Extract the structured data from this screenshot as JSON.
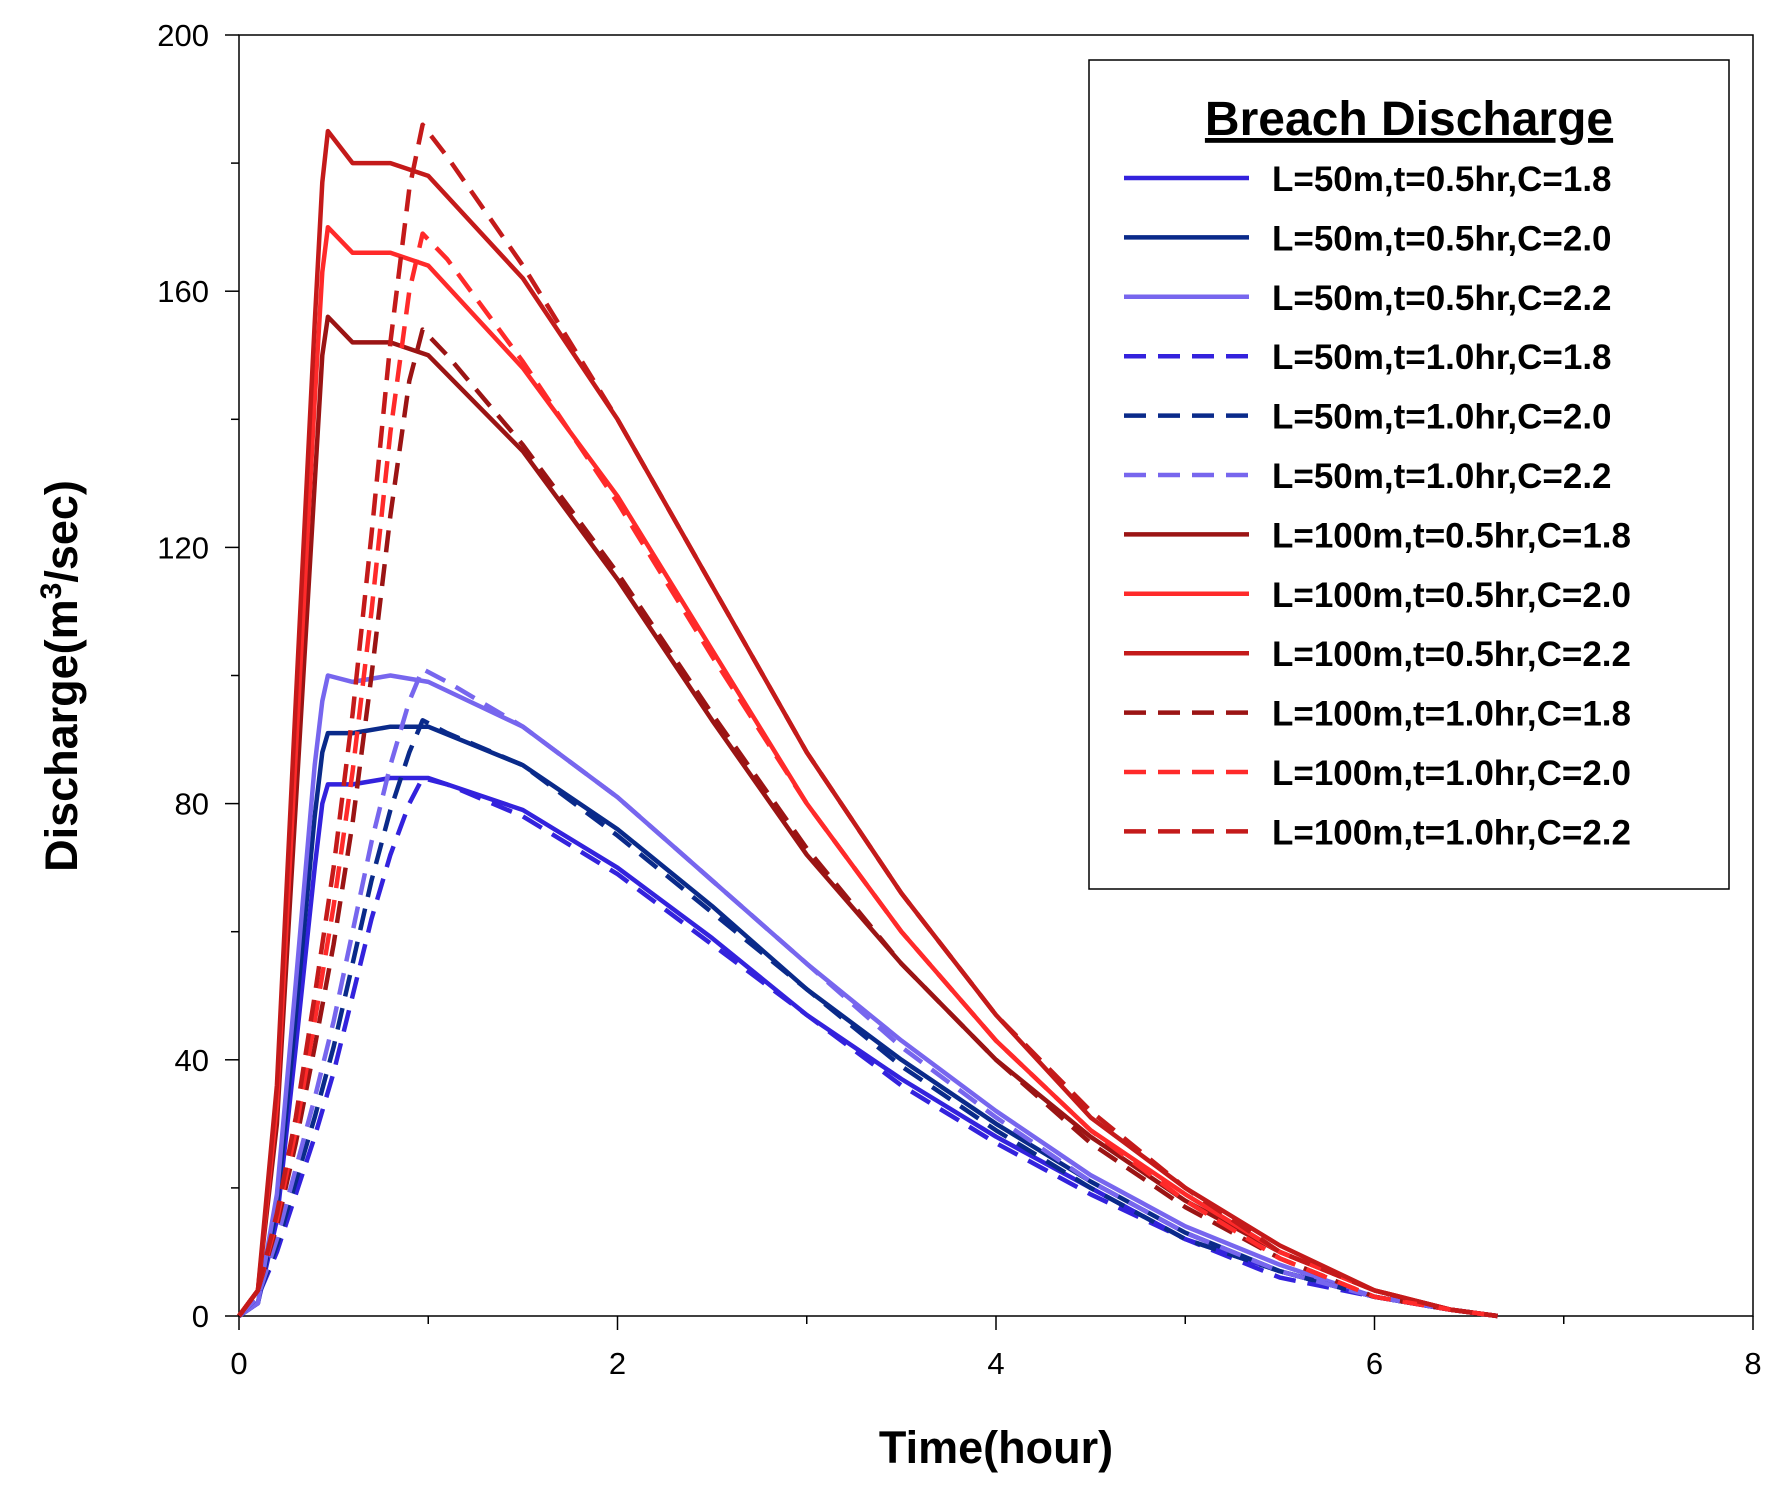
{
  "chart_data": {
    "type": "line",
    "title": "",
    "xlabel": "Time(hour)",
    "ylabel": "Discharge(m3/sec)",
    "ylabel_parts": {
      "pre": "Discharge(m",
      "sup": "3",
      "post": "/sec)"
    },
    "xlim": [
      0,
      8
    ],
    "ylim": [
      0,
      200
    ],
    "xticks": [
      0,
      2,
      4,
      6,
      8
    ],
    "xtick_labels": [
      "0",
      "2",
      "4",
      "6",
      "8"
    ],
    "yticks": [
      0,
      40,
      80,
      120,
      160,
      200
    ],
    "ytick_labels": [
      "0",
      "40",
      "80",
      "120",
      "160",
      "200"
    ],
    "grid": false,
    "legend": {
      "title": "Breach Discharge",
      "position": "top-right"
    },
    "series": [
      {
        "name": "L=50m,t=0.5hr,C=1.8",
        "color": "#3322dd",
        "dash": false,
        "x": [
          0,
          0.1,
          0.2,
          0.3,
          0.4,
          0.44,
          0.47,
          0.6,
          0.8,
          1.0,
          1.5,
          2.0,
          2.5,
          3.0,
          3.5,
          4.0,
          4.5,
          5.0,
          5.5,
          6.0,
          6.4,
          6.65
        ],
        "y": [
          0,
          2,
          15,
          42,
          70,
          80,
          83,
          83,
          84,
          84,
          79,
          70,
          59,
          47,
          37,
          28,
          20,
          12,
          7,
          3,
          1,
          0
        ]
      },
      {
        "name": "L=50m,t=0.5hr,C=2.0",
        "color": "#0a2a8a",
        "dash": false,
        "x": [
          0,
          0.1,
          0.2,
          0.3,
          0.4,
          0.44,
          0.47,
          0.6,
          0.8,
          1.0,
          1.5,
          2.0,
          2.5,
          3.0,
          3.5,
          4.0,
          4.5,
          5.0,
          5.5,
          6.0,
          6.4,
          6.65
        ],
        "y": [
          0,
          2,
          17,
          47,
          78,
          88,
          91,
          91,
          92,
          92,
          86,
          76,
          64,
          51,
          40,
          30,
          21,
          13,
          7,
          3,
          1,
          0
        ]
      },
      {
        "name": "L=50m,t=0.5hr,C=2.2",
        "color": "#7766ee",
        "dash": false,
        "x": [
          0,
          0.1,
          0.2,
          0.3,
          0.4,
          0.44,
          0.47,
          0.6,
          0.8,
          1.0,
          1.5,
          2.0,
          2.5,
          3.0,
          3.5,
          4.0,
          4.5,
          5.0,
          5.5,
          6.0,
          6.4,
          6.65
        ],
        "y": [
          0,
          2,
          19,
          52,
          86,
          96,
          100,
          99,
          100,
          99,
          92,
          81,
          68,
          55,
          43,
          32,
          22,
          14,
          8,
          3,
          1,
          0
        ]
      },
      {
        "name": "L=50m,t=1.0hr,C=1.8",
        "color": "#3322dd",
        "dash": true,
        "x": [
          0,
          0.1,
          0.2,
          0.3,
          0.4,
          0.5,
          0.6,
          0.7,
          0.8,
          0.9,
          0.97,
          1.1,
          1.5,
          2.0,
          2.5,
          3.0,
          3.5,
          4.0,
          4.5,
          5.0,
          5.5,
          6.0,
          6.4,
          6.65
        ],
        "y": [
          0,
          3,
          10,
          19,
          28,
          38,
          50,
          62,
          72,
          80,
          84,
          83,
          78,
          69,
          58,
          47,
          36,
          27,
          19,
          12,
          6,
          3,
          1,
          0
        ]
      },
      {
        "name": "L=50m,t=1.0hr,C=2.0",
        "color": "#0a2a8a",
        "dash": true,
        "x": [
          0,
          0.1,
          0.2,
          0.3,
          0.4,
          0.5,
          0.6,
          0.7,
          0.8,
          0.9,
          0.97,
          1.1,
          1.5,
          2.0,
          2.5,
          3.0,
          3.5,
          4.0,
          4.5,
          5.0,
          5.5,
          6.0,
          6.4,
          6.65
        ],
        "y": [
          0,
          3,
          11,
          21,
          31,
          42,
          55,
          68,
          79,
          88,
          93,
          91,
          86,
          75,
          63,
          51,
          39,
          29,
          20,
          12,
          7,
          3,
          1,
          0
        ]
      },
      {
        "name": "L=50m,t=1.0hr,C=2.2",
        "color": "#7766ee",
        "dash": true,
        "x": [
          0,
          0.1,
          0.2,
          0.3,
          0.4,
          0.5,
          0.6,
          0.7,
          0.8,
          0.9,
          0.97,
          1.1,
          1.5,
          2.0,
          2.5,
          3.0,
          3.5,
          4.0,
          4.5,
          5.0,
          5.5,
          6.0,
          6.4,
          6.65
        ],
        "y": [
          0,
          3,
          12,
          23,
          34,
          46,
          60,
          74,
          86,
          96,
          101,
          99,
          92,
          81,
          68,
          55,
          42,
          31,
          21,
          13,
          7,
          3,
          1,
          0
        ]
      },
      {
        "name": "L=100m,t=0.5hr,C=1.8",
        "color": "#9b1414",
        "dash": false,
        "x": [
          0,
          0.1,
          0.2,
          0.3,
          0.4,
          0.44,
          0.47,
          0.6,
          0.8,
          1.0,
          1.5,
          2.0,
          2.5,
          3.0,
          3.5,
          4.0,
          4.5,
          5.0,
          5.5,
          6.0,
          6.4,
          6.65
        ],
        "y": [
          0,
          4,
          30,
          80,
          130,
          150,
          156,
          152,
          152,
          150,
          135,
          115,
          93,
          72,
          55,
          40,
          28,
          18,
          10,
          4,
          1,
          0
        ]
      },
      {
        "name": "L=100m,t=0.5hr,C=2.0",
        "color": "#ff2a2a",
        "dash": false,
        "x": [
          0,
          0.1,
          0.2,
          0.3,
          0.4,
          0.44,
          0.47,
          0.6,
          0.8,
          1.0,
          1.5,
          2.0,
          2.5,
          3.0,
          3.5,
          4.0,
          4.5,
          5.0,
          5.5,
          6.0,
          6.4,
          6.65
        ],
        "y": [
          0,
          4,
          33,
          88,
          143,
          163,
          170,
          166,
          166,
          164,
          148,
          128,
          104,
          80,
          60,
          43,
          29,
          19,
          10,
          4,
          1,
          0
        ]
      },
      {
        "name": "L=100m,t=0.5hr,C=2.2",
        "color": "#c41a1a",
        "dash": false,
        "x": [
          0,
          0.1,
          0.2,
          0.3,
          0.4,
          0.44,
          0.47,
          0.6,
          0.8,
          1.0,
          1.5,
          2.0,
          2.5,
          3.0,
          3.5,
          4.0,
          4.5,
          5.0,
          5.5,
          6.0,
          6.4,
          6.65
        ],
        "y": [
          0,
          4,
          36,
          96,
          155,
          177,
          185,
          180,
          180,
          178,
          162,
          140,
          114,
          88,
          66,
          47,
          31,
          20,
          11,
          4,
          1,
          0
        ]
      },
      {
        "name": "L=100m,t=1.0hr,C=1.8",
        "color": "#9b1414",
        "dash": true,
        "x": [
          0,
          0.1,
          0.2,
          0.3,
          0.4,
          0.5,
          0.6,
          0.7,
          0.8,
          0.9,
          0.97,
          1.1,
          1.5,
          2.0,
          2.5,
          3.0,
          3.5,
          4.0,
          4.5,
          5.0,
          5.5,
          6.0,
          6.4,
          6.65
        ],
        "y": [
          0,
          4,
          14,
          27,
          42,
          58,
          77,
          100,
          125,
          146,
          154,
          150,
          136,
          116,
          94,
          73,
          55,
          40,
          27,
          17,
          9,
          3,
          1,
          0
        ]
      },
      {
        "name": "L=100m,t=1.0hr,C=2.0",
        "color": "#ff2a2a",
        "dash": true,
        "x": [
          0,
          0.1,
          0.2,
          0.3,
          0.4,
          0.5,
          0.6,
          0.7,
          0.8,
          0.9,
          0.97,
          1.1,
          1.5,
          2.0,
          2.5,
          3.0,
          3.5,
          4.0,
          4.5,
          5.0,
          5.5,
          6.0,
          6.4,
          6.65
        ],
        "y": [
          0,
          4,
          15,
          29,
          46,
          64,
          85,
          110,
          138,
          160,
          169,
          165,
          149,
          127,
          103,
          80,
          60,
          43,
          29,
          18,
          9,
          3,
          1,
          0
        ]
      },
      {
        "name": "L=100m,t=1.0hr,C=2.2",
        "color": "#c41a1a",
        "dash": true,
        "x": [
          0,
          0.1,
          0.2,
          0.3,
          0.4,
          0.5,
          0.6,
          0.7,
          0.8,
          0.9,
          0.97,
          1.1,
          1.5,
          2.0,
          2.5,
          3.0,
          3.5,
          4.0,
          4.5,
          5.0,
          5.5,
          6.0,
          6.4,
          6.65
        ],
        "y": [
          0,
          4,
          16,
          31,
          50,
          70,
          94,
          122,
          152,
          176,
          186,
          181,
          164,
          140,
          114,
          88,
          66,
          47,
          32,
          20,
          10,
          4,
          1,
          0
        ]
      }
    ]
  }
}
